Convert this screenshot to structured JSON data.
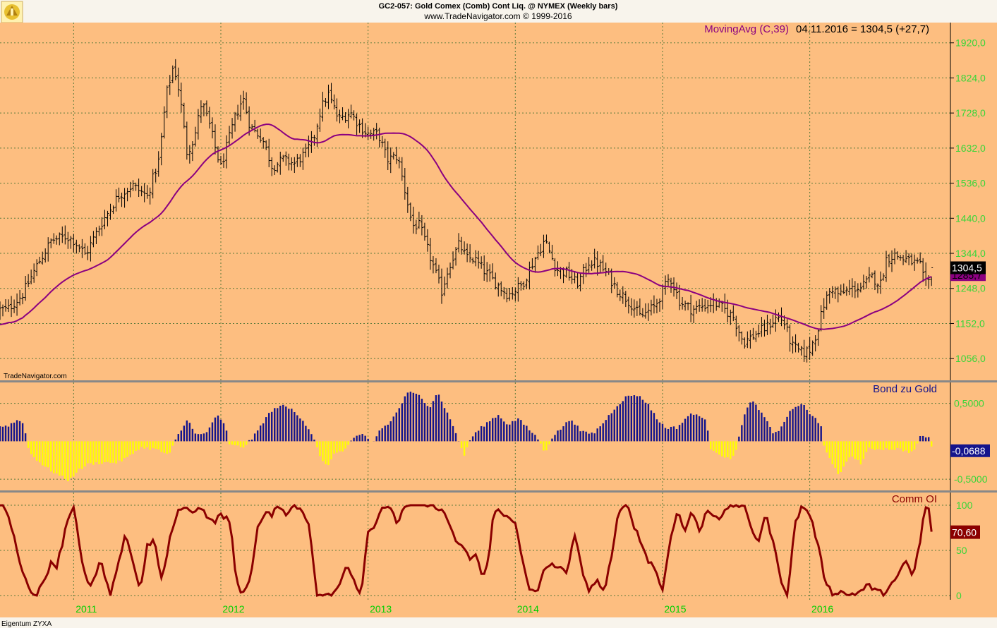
{
  "header": {
    "title": "GC2-057:  Gold Comex (Comb) Cont Liq. @ NYMEX  (Weekly bars)",
    "subtitle": "www.TradeNavigator.com © 1999-2016"
  },
  "footer": {
    "left": "Eigentum ZYXA",
    "watermark": "TradeNavigator.com"
  },
  "colors": {
    "panel_bg": "#fdbe80",
    "frame": "#ffffff",
    "divider": "#888888",
    "grid": "#5a7a3a",
    "axis_text": "#38d638",
    "price_bars": "#000000",
    "ma_line": "#8b0080",
    "bond_pos": "#14148c",
    "bond_neg": "#ffff00",
    "oi_line": "#8b0000",
    "year_text": "#00d000"
  },
  "chart_data": [
    {
      "type": "ohlc",
      "title": "Gold Comex (Comb) Cont Liq. @ NYMEX (Weekly bars)",
      "legend": "MovingAvg (C,39)",
      "legend_value": "04.11.2016 = 1304,5 (+27,7)",
      "ylim": [
        1010,
        1960
      ],
      "y_ticks": [
        1056,
        1152,
        1248,
        1344,
        1440,
        1536,
        1632,
        1728,
        1824,
        1920
      ],
      "y_tick_labels": [
        "1056,0",
        "1152,0",
        "1248,0",
        "1344,0",
        "1440,0",
        "1536,0",
        "1632,0",
        "1728,0",
        "1824,0",
        "1920,0"
      ],
      "last_close": 1304.5,
      "last_close_label": "1304,5",
      "ma_last": 1285.7,
      "ma_last_label": "1285,7",
      "x_range": [
        "2010-07",
        "2016-11"
      ],
      "close_anchors": [
        [
          2010.55,
          1190
        ],
        [
          2010.65,
          1230
        ],
        [
          2010.75,
          1310
        ],
        [
          2010.85,
          1380
        ],
        [
          2010.95,
          1390
        ],
        [
          2011.0,
          1380
        ],
        [
          2011.08,
          1340
        ],
        [
          2011.18,
          1420
        ],
        [
          2011.3,
          1500
        ],
        [
          2011.4,
          1530
        ],
        [
          2011.5,
          1500
        ],
        [
          2011.58,
          1600
        ],
        [
          2011.63,
          1780
        ],
        [
          2011.68,
          1860
        ],
        [
          2011.72,
          1780
        ],
        [
          2011.77,
          1620
        ],
        [
          2011.82,
          1660
        ],
        [
          2011.87,
          1760
        ],
        [
          2011.92,
          1700
        ],
        [
          2011.97,
          1620
        ],
        [
          2012.0,
          1580
        ],
        [
          2012.05,
          1650
        ],
        [
          2012.1,
          1720
        ],
        [
          2012.15,
          1770
        ],
        [
          2012.2,
          1690
        ],
        [
          2012.28,
          1660
        ],
        [
          2012.35,
          1580
        ],
        [
          2012.42,
          1600
        ],
        [
          2012.5,
          1590
        ],
        [
          2012.58,
          1620
        ],
        [
          2012.63,
          1660
        ],
        [
          2012.68,
          1740
        ],
        [
          2012.73,
          1780
        ],
        [
          2012.8,
          1710
        ],
        [
          2012.88,
          1730
        ],
        [
          2012.95,
          1690
        ],
        [
          2013.0,
          1670
        ],
        [
          2013.07,
          1670
        ],
        [
          2013.13,
          1600
        ],
        [
          2013.2,
          1610
        ],
        [
          2013.27,
          1480
        ],
        [
          2013.3,
          1420
        ],
        [
          2013.35,
          1420
        ],
        [
          2013.45,
          1300
        ],
        [
          2013.5,
          1240
        ],
        [
          2013.55,
          1310
        ],
        [
          2013.62,
          1370
        ],
        [
          2013.67,
          1330
        ],
        [
          2013.72,
          1330
        ],
        [
          2013.78,
          1300
        ],
        [
          2013.85,
          1270
        ],
        [
          2013.95,
          1230
        ],
        [
          2014.05,
          1260
        ],
        [
          2014.12,
          1320
        ],
        [
          2014.2,
          1380
        ],
        [
          2014.28,
          1300
        ],
        [
          2014.35,
          1290
        ],
        [
          2014.42,
          1260
        ],
        [
          2014.5,
          1320
        ],
        [
          2014.55,
          1320
        ],
        [
          2014.62,
          1290
        ],
        [
          2014.7,
          1240
        ],
        [
          2014.78,
          1210
        ],
        [
          2014.85,
          1170
        ],
        [
          2014.95,
          1200
        ],
        [
          2015.05,
          1280
        ],
        [
          2015.12,
          1210
        ],
        [
          2015.2,
          1190
        ],
        [
          2015.28,
          1200
        ],
        [
          2015.35,
          1210
        ],
        [
          2015.42,
          1190
        ],
        [
          2015.48,
          1170
        ],
        [
          2015.55,
          1100
        ],
        [
          2015.62,
          1120
        ],
        [
          2015.7,
          1140
        ],
        [
          2015.78,
          1170
        ],
        [
          2015.82,
          1160
        ],
        [
          2015.88,
          1090
        ],
        [
          2015.95,
          1070
        ],
        [
          2016.0,
          1080
        ],
        [
          2016.05,
          1130
        ],
        [
          2016.1,
          1210
        ],
        [
          2016.15,
          1250
        ],
        [
          2016.2,
          1230
        ],
        [
          2016.3,
          1250
        ],
        [
          2016.35,
          1250
        ],
        [
          2016.42,
          1280
        ],
        [
          2016.48,
          1260
        ],
        [
          2016.52,
          1330
        ],
        [
          2016.58,
          1340
        ],
        [
          2016.63,
          1330
        ],
        [
          2016.7,
          1320
        ],
        [
          2016.75,
          1310
        ],
        [
          2016.78,
          1260
        ],
        [
          2016.82,
          1270
        ],
        [
          2016.845,
          1304.5
        ]
      ]
    },
    {
      "type": "bar",
      "legend": "Bond zu Gold",
      "ylim": [
        -0.62,
        0.72
      ],
      "y_ticks": [
        0.5,
        -0.5
      ],
      "y_tick_labels": [
        "0,5000",
        "-0,5000"
      ],
      "last_value": -0.0688,
      "last_value_label": "-0,0688",
      "anchors": [
        [
          2010.55,
          0.2
        ],
        [
          2010.62,
          0.28
        ],
        [
          2010.66,
          0.25
        ],
        [
          2010.68,
          0.02
        ],
        [
          2010.7,
          -0.15
        ],
        [
          2010.8,
          -0.33
        ],
        [
          2010.9,
          -0.45
        ],
        [
          2010.97,
          -0.52
        ],
        [
          2011.02,
          -0.4
        ],
        [
          2011.1,
          -0.3
        ],
        [
          2011.2,
          -0.28
        ],
        [
          2011.3,
          -0.28
        ],
        [
          2011.38,
          -0.2
        ],
        [
          2011.45,
          -0.08
        ],
        [
          2011.55,
          -0.1
        ],
        [
          2011.65,
          -0.18
        ],
        [
          2011.7,
          0.05
        ],
        [
          2011.78,
          0.3
        ],
        [
          2011.83,
          0.08
        ],
        [
          2011.9,
          0.1
        ],
        [
          2011.97,
          0.35
        ],
        [
          2012.03,
          0.2
        ],
        [
          2012.06,
          -0.05
        ],
        [
          2012.15,
          -0.08
        ],
        [
          2012.22,
          0.05
        ],
        [
          2012.32,
          0.35
        ],
        [
          2012.4,
          0.48
        ],
        [
          2012.48,
          0.42
        ],
        [
          2012.55,
          0.3
        ],
        [
          2012.63,
          0.06
        ],
        [
          2012.68,
          -0.25
        ],
        [
          2012.72,
          -0.33
        ],
        [
          2012.78,
          -0.15
        ],
        [
          2012.85,
          -0.1
        ],
        [
          2012.9,
          0.05
        ],
        [
          2012.97,
          0.08
        ],
        [
          2013.03,
          -0.03
        ],
        [
          2013.08,
          0.15
        ],
        [
          2013.15,
          0.25
        ],
        [
          2013.2,
          0.4
        ],
        [
          2013.27,
          0.65
        ],
        [
          2013.35,
          0.6
        ],
        [
          2013.42,
          0.45
        ],
        [
          2013.47,
          0.65
        ],
        [
          2013.52,
          0.45
        ],
        [
          2013.6,
          0.1
        ],
        [
          2013.65,
          -0.2
        ],
        [
          2013.7,
          0.05
        ],
        [
          2013.78,
          0.2
        ],
        [
          2013.88,
          0.35
        ],
        [
          2013.95,
          0.22
        ],
        [
          2014.02,
          0.3
        ],
        [
          2014.08,
          0.18
        ],
        [
          2014.15,
          0.05
        ],
        [
          2014.2,
          -0.15
        ],
        [
          2014.25,
          0.05
        ],
        [
          2014.3,
          0.15
        ],
        [
          2014.38,
          0.3
        ],
        [
          2014.45,
          0.12
        ],
        [
          2014.53,
          0.1
        ],
        [
          2014.6,
          0.25
        ],
        [
          2014.68,
          0.45
        ],
        [
          2014.75,
          0.58
        ],
        [
          2014.82,
          0.62
        ],
        [
          2014.9,
          0.5
        ],
        [
          2014.96,
          0.3
        ],
        [
          2015.02,
          0.18
        ],
        [
          2015.1,
          0.18
        ],
        [
          2015.18,
          0.35
        ],
        [
          2015.25,
          0.35
        ],
        [
          2015.3,
          0.25
        ],
        [
          2015.32,
          -0.08
        ],
        [
          2015.4,
          -0.18
        ],
        [
          2015.46,
          -0.25
        ],
        [
          2015.5,
          -0.1
        ],
        [
          2015.55,
          0.3
        ],
        [
          2015.6,
          0.55
        ],
        [
          2015.68,
          0.35
        ],
        [
          2015.75,
          0.12
        ],
        [
          2015.8,
          0.15
        ],
        [
          2015.85,
          0.35
        ],
        [
          2015.9,
          0.45
        ],
        [
          2015.95,
          0.5
        ],
        [
          2016.0,
          0.35
        ],
        [
          2016.04,
          0.3
        ],
        [
          2016.08,
          0.2
        ],
        [
          2016.1,
          -0.1
        ],
        [
          2016.15,
          -0.3
        ],
        [
          2016.2,
          -0.45
        ],
        [
          2016.25,
          -0.25
        ],
        [
          2016.3,
          -0.2
        ],
        [
          2016.35,
          -0.3
        ],
        [
          2016.4,
          -0.1
        ],
        [
          2016.5,
          -0.1
        ],
        [
          2016.6,
          -0.1
        ],
        [
          2016.7,
          -0.15
        ],
        [
          2016.75,
          0.05
        ],
        [
          2016.8,
          0.07
        ],
        [
          2016.845,
          -0.0688
        ]
      ]
    },
    {
      "type": "line",
      "legend": "Comm OI",
      "ylim": [
        0,
        100
      ],
      "y_ticks": [
        0,
        50,
        100
      ],
      "y_tick_labels": [
        "0",
        "50",
        "100"
      ],
      "last_value": 70.6,
      "last_value_label": "70,60",
      "anchors": [
        [
          2010.5,
          100
        ],
        [
          2010.55,
          95
        ],
        [
          2010.6,
          60
        ],
        [
          2010.65,
          30
        ],
        [
          2010.7,
          5
        ],
        [
          2010.75,
          2
        ],
        [
          2010.8,
          15
        ],
        [
          2010.85,
          40
        ],
        [
          2010.88,
          30
        ],
        [
          2010.92,
          55
        ],
        [
          2010.95,
          80
        ],
        [
          2011.0,
          100
        ],
        [
          2011.02,
          80
        ],
        [
          2011.05,
          40
        ],
        [
          2011.1,
          10
        ],
        [
          2011.15,
          20
        ],
        [
          2011.18,
          40
        ],
        [
          2011.22,
          15
        ],
        [
          2011.25,
          0
        ],
        [
          2011.3,
          30
        ],
        [
          2011.35,
          70
        ],
        [
          2011.4,
          40
        ],
        [
          2011.45,
          5
        ],
        [
          2011.5,
          55
        ],
        [
          2011.55,
          60
        ],
        [
          2011.6,
          15
        ],
        [
          2011.65,
          60
        ],
        [
          2011.7,
          90
        ],
        [
          2011.75,
          100
        ],
        [
          2011.8,
          90
        ],
        [
          2011.85,
          100
        ],
        [
          2011.9,
          90
        ],
        [
          2011.95,
          80
        ],
        [
          2012.0,
          90
        ],
        [
          2012.05,
          85
        ],
        [
          2012.08,
          60
        ],
        [
          2012.1,
          20
        ],
        [
          2012.15,
          0
        ],
        [
          2012.2,
          20
        ],
        [
          2012.25,
          75
        ],
        [
          2012.3,
          90
        ],
        [
          2012.35,
          90
        ],
        [
          2012.4,
          100
        ],
        [
          2012.45,
          90
        ],
        [
          2012.5,
          100
        ],
        [
          2012.55,
          95
        ],
        [
          2012.6,
          80
        ],
        [
          2012.65,
          0
        ],
        [
          2012.75,
          0
        ],
        [
          2012.8,
          10
        ],
        [
          2012.85,
          35
        ],
        [
          2012.9,
          20
        ],
        [
          2012.95,
          0
        ],
        [
          2013.0,
          70
        ],
        [
          2013.05,
          80
        ],
        [
          2013.1,
          100
        ],
        [
          2013.15,
          95
        ],
        [
          2013.2,
          80
        ],
        [
          2013.25,
          100
        ],
        [
          2013.35,
          100
        ],
        [
          2013.45,
          100
        ],
        [
          2013.5,
          95
        ],
        [
          2013.55,
          80
        ],
        [
          2013.6,
          60
        ],
        [
          2013.65,
          50
        ],
        [
          2013.7,
          40
        ],
        [
          2013.73,
          45
        ],
        [
          2013.78,
          20
        ],
        [
          2013.82,
          40
        ],
        [
          2013.85,
          90
        ],
        [
          2013.9,
          95
        ],
        [
          2013.95,
          85
        ],
        [
          2014.0,
          80
        ],
        [
          2014.05,
          40
        ],
        [
          2014.1,
          5
        ],
        [
          2014.15,
          3
        ],
        [
          2014.2,
          30
        ],
        [
          2014.25,
          35
        ],
        [
          2014.3,
          30
        ],
        [
          2014.35,
          25
        ],
        [
          2014.4,
          70
        ],
        [
          2014.45,
          30
        ],
        [
          2014.5,
          2
        ],
        [
          2014.55,
          20
        ],
        [
          2014.6,
          3
        ],
        [
          2014.65,
          40
        ],
        [
          2014.7,
          90
        ],
        [
          2014.75,
          100
        ],
        [
          2014.78,
          95
        ],
        [
          2014.8,
          80
        ],
        [
          2014.85,
          60
        ],
        [
          2014.9,
          40
        ],
        [
          2014.95,
          30
        ],
        [
          2015.0,
          5
        ],
        [
          2015.05,
          60
        ],
        [
          2015.1,
          95
        ],
        [
          2015.15,
          70
        ],
        [
          2015.2,
          95
        ],
        [
          2015.25,
          70
        ],
        [
          2015.3,
          95
        ],
        [
          2015.35,
          90
        ],
        [
          2015.4,
          85
        ],
        [
          2015.45,
          100
        ],
        [
          2015.55,
          100
        ],
        [
          2015.6,
          75
        ],
        [
          2015.65,
          60
        ],
        [
          2015.7,
          90
        ],
        [
          2015.75,
          60
        ],
        [
          2015.8,
          20
        ],
        [
          2015.85,
          0
        ],
        [
          2015.9,
          80
        ],
        [
          2015.95,
          100
        ],
        [
          2016.0,
          90
        ],
        [
          2016.05,
          60
        ],
        [
          2016.1,
          20
        ],
        [
          2016.15,
          2
        ],
        [
          2016.2,
          5
        ],
        [
          2016.25,
          1
        ],
        [
          2016.3,
          2
        ],
        [
          2016.35,
          5
        ],
        [
          2016.4,
          12
        ],
        [
          2016.45,
          5
        ],
        [
          2016.5,
          2
        ],
        [
          2016.55,
          12
        ],
        [
          2016.6,
          20
        ],
        [
          2016.65,
          40
        ],
        [
          2016.7,
          20
        ],
        [
          2016.75,
          60
        ],
        [
          2016.78,
          95
        ],
        [
          2016.8,
          100
        ],
        [
          2016.845,
          70.6
        ]
      ]
    }
  ],
  "x_axis": {
    "years": [
      2011,
      2012,
      2013,
      2014,
      2015,
      2016
    ],
    "year_labels": [
      "2011",
      "2012",
      "2013",
      "2014",
      "2015",
      "2016"
    ]
  }
}
